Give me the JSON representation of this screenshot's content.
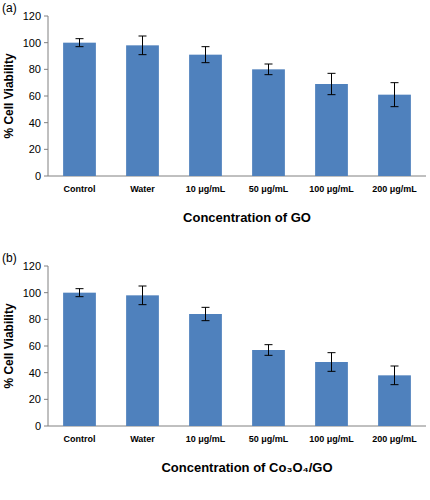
{
  "chart_data": [
    {
      "type": "bar",
      "title": "(a)",
      "x_label": "Concentration of GO",
      "y_label": "% Cell Viability",
      "categories": [
        "Control",
        "Water",
        "10 μg/mL",
        "50 μg/mL",
        "100 μg/mL",
        "200 μg/mL"
      ],
      "values": [
        100,
        98,
        91,
        80,
        69,
        61
      ],
      "errors": [
        3,
        7,
        6,
        4,
        8,
        9
      ],
      "color": "#4f81bd",
      "ylim": [
        0,
        120
      ],
      "yticks": [
        0,
        20,
        40,
        60,
        80,
        100,
        120
      ],
      "grid": false
    },
    {
      "type": "bar",
      "title": "(b)",
      "x_label": "Concentration of Co₃O₄/GO",
      "y_label": "% Cell Viability",
      "categories": [
        "Control",
        "Water",
        "10 μg/mL",
        "50 μg/mL",
        "100 μg/mL",
        "200 μg/mL"
      ],
      "values": [
        100,
        98,
        84,
        57,
        48,
        38
      ],
      "errors": [
        3,
        7,
        5,
        4,
        7,
        7
      ],
      "color": "#4f81bd",
      "ylim": [
        0,
        120
      ],
      "yticks": [
        0,
        20,
        40,
        60,
        80,
        100,
        120
      ],
      "grid": false
    }
  ]
}
